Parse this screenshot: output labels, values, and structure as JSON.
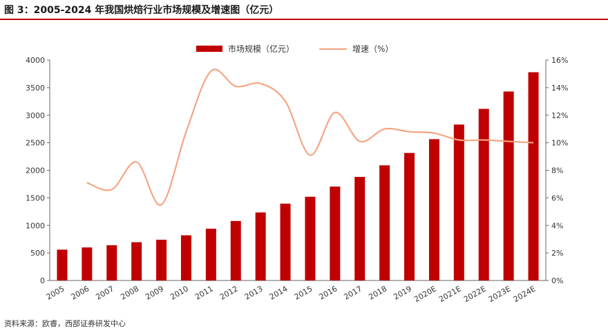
{
  "header": {
    "title": "图 3：2005-2024 年我国烘焙行业市场规模及增速图（亿元）"
  },
  "footer": {
    "source": "资料来源：欧睿，西部证券研发中心"
  },
  "colors": {
    "bar": "#c00000",
    "line": "#f4a582",
    "rule": "#c00000"
  },
  "chart_data": {
    "type": "bar+line",
    "categories": [
      "2005",
      "2006",
      "2007",
      "2008",
      "2009",
      "2010",
      "2011",
      "2012",
      "2013",
      "2014",
      "2015",
      "2016",
      "2017",
      "2018",
      "2019",
      "2020E",
      "2021E",
      "2022E",
      "2023E",
      "2024E"
    ],
    "series": [
      {
        "name": "市场规模（亿元）",
        "type": "bar",
        "axis": "left",
        "values": [
          560,
          600,
          640,
          695,
          740,
          820,
          940,
          1080,
          1235,
          1395,
          1520,
          1705,
          1880,
          2090,
          2315,
          2565,
          2830,
          3115,
          3430,
          3780
        ]
      },
      {
        "name": "增速（%）",
        "type": "line",
        "axis": "right",
        "values": [
          null,
          7.1,
          6.6,
          8.6,
          5.5,
          10.8,
          15.2,
          14.1,
          14.3,
          13.0,
          9.1,
          12.2,
          10.1,
          11.0,
          10.8,
          10.7,
          10.2,
          10.2,
          10.1,
          10.0
        ]
      }
    ],
    "left_axis": {
      "ylim": [
        0,
        4000
      ],
      "ticks": [
        "0",
        "500",
        "1000",
        "1500",
        "2000",
        "2500",
        "3000",
        "3500",
        "4000"
      ]
    },
    "right_axis": {
      "ylim": [
        0,
        16
      ],
      "ticks": [
        "0%",
        "2%",
        "4%",
        "6%",
        "8%",
        "10%",
        "12%",
        "14%",
        "16%"
      ]
    },
    "legend": {
      "placement": "top-center",
      "entries": [
        "市场规模（亿元）",
        "增速（%）"
      ]
    },
    "grid": false
  }
}
